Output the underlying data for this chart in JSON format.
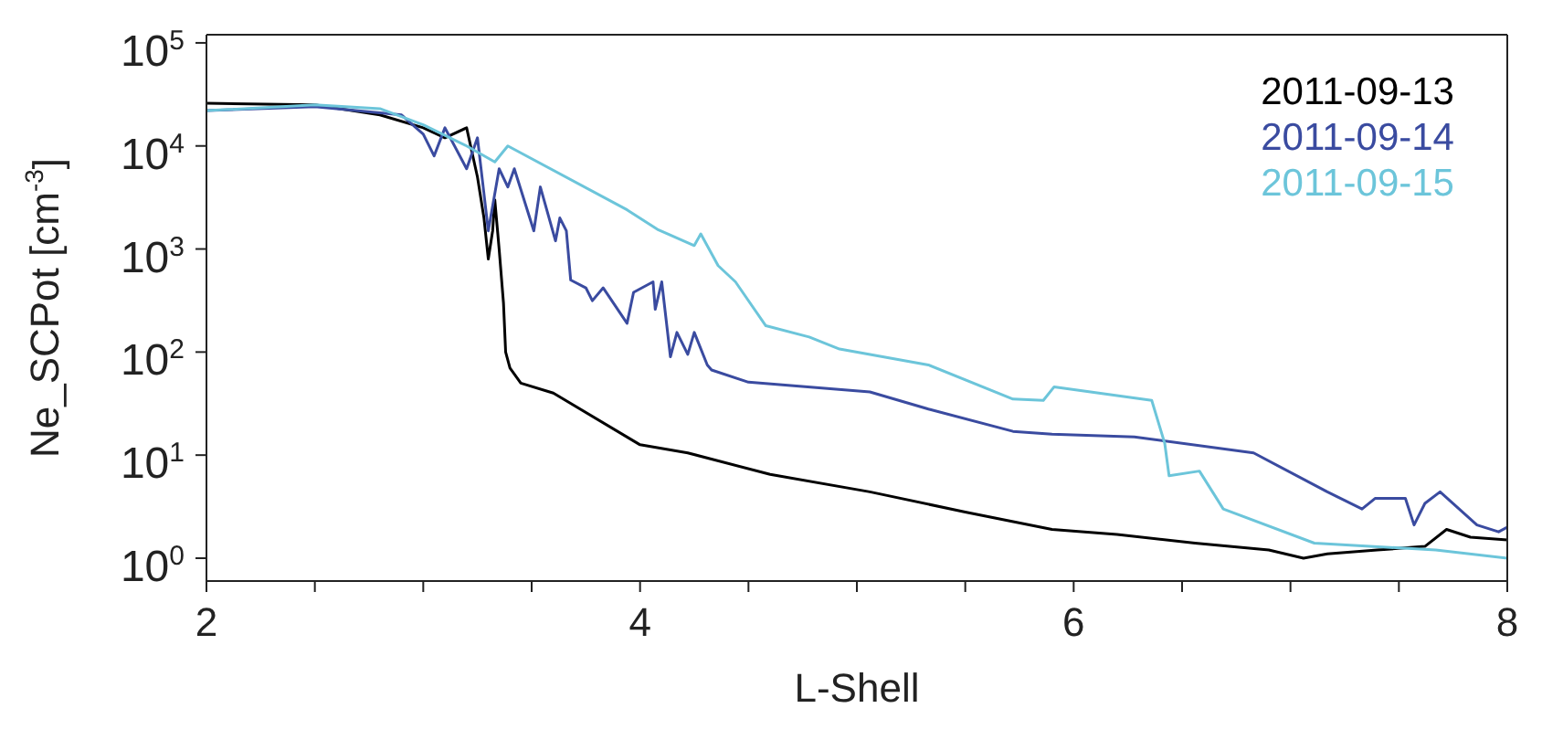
{
  "chart_data": {
    "type": "line",
    "xlabel": "L-Shell",
    "ylabel": "Ne_SCPot [cm$^{-3}$]",
    "log": "y",
    "legend": "top right",
    "marker": "none",
    "line_style": "solid",
    "xlim": [
      2,
      8
    ],
    "xticks": [
      2,
      {
        "value": 2.5,
        "label": null
      },
      {
        "value": 3,
        "label": null
      },
      {
        "value": 3.5,
        "label": null
      },
      4,
      {
        "value": 4.5,
        "label": null
      },
      {
        "value": 5,
        "label": null
      },
      {
        "value": 5.5,
        "label": null
      },
      6,
      {
        "value": 6.5,
        "label": null
      },
      {
        "value": 7,
        "label": null
      },
      {
        "value": 7.5,
        "label": null
      },
      8
    ],
    "ylim": [
      0.6,
      120000
    ],
    "yticks": [
      {
        "value": 1,
        "label": "10$^{0}$"
      },
      {
        "value": 10,
        "label": "10$^{1}$"
      },
      {
        "value": 100,
        "label": "10$^{2}$"
      },
      {
        "value": 1000,
        "label": "10$^{3}$"
      },
      {
        "value": 10000,
        "label": "10$^{4}$"
      },
      {
        "value": 100000,
        "label": "10$^{5}$"
      }
    ],
    "series": [
      {
        "name": "2011-09-13",
        "color": "#000000",
        "x": [
          2.0,
          2.5,
          2.8,
          3.0,
          3.1,
          3.2,
          3.25,
          3.28,
          3.3,
          3.32,
          3.33,
          3.35,
          3.37,
          3.38,
          3.4,
          3.45,
          3.6,
          4.0,
          4.22,
          4.6,
          5.06,
          5.5,
          5.9,
          6.2,
          6.56,
          6.9,
          7.06,
          7.17,
          7.4,
          7.62,
          7.72,
          7.83,
          8.0
        ],
        "values": [
          26000,
          25000,
          20000,
          15000,
          12000,
          15000,
          5000,
          2000,
          800,
          1500,
          3000,
          1000,
          300,
          100,
          70,
          50,
          40,
          12.6,
          10.5,
          6.5,
          4.4,
          2.8,
          1.9,
          1.7,
          1.4,
          1.2,
          1.0,
          1.1,
          1.2,
          1.3,
          1.9,
          1.6,
          1.5
        ]
      },
      {
        "name": "2011-09-14",
        "color": "#3a4ba0",
        "x": [
          2.0,
          2.5,
          2.9,
          3.0,
          3.05,
          3.1,
          3.2,
          3.25,
          3.3,
          3.35,
          3.39,
          3.42,
          3.51,
          3.54,
          3.61,
          3.63,
          3.66,
          3.68,
          3.75,
          3.78,
          3.83,
          3.94,
          3.97,
          4.06,
          4.07,
          4.1,
          4.14,
          4.17,
          4.22,
          4.25,
          4.31,
          4.33,
          4.5,
          5.06,
          5.33,
          5.72,
          5.9,
          6.28,
          6.83,
          7.17,
          7.33,
          7.39,
          7.53,
          7.57,
          7.62,
          7.69,
          7.86,
          7.96,
          8.0
        ],
        "values": [
          22000,
          24000,
          20000,
          13000,
          8000,
          15000,
          6000,
          12000,
          1500,
          6000,
          4000,
          6000,
          1500,
          4000,
          1200,
          2000,
          1500,
          500,
          420,
          315,
          420,
          190,
          380,
          480,
          260,
          480,
          90,
          155,
          95,
          155,
          75,
          67,
          51,
          41,
          28,
          17,
          16,
          15,
          10.5,
          4.4,
          3.0,
          3.8,
          3.8,
          2.1,
          3.4,
          4.4,
          2.1,
          1.8,
          2.0
        ]
      },
      {
        "name": "2011-09-15",
        "color": "#6cc5da",
        "x": [
          2.0,
          2.5,
          2.8,
          3.0,
          3.2,
          3.33,
          3.39,
          3.94,
          4.08,
          4.25,
          4.28,
          4.36,
          4.44,
          4.58,
          4.78,
          4.92,
          5.33,
          5.72,
          5.86,
          5.91,
          6.36,
          6.42,
          6.44,
          6.58,
          6.69,
          7.11,
          7.67,
          8.0
        ],
        "values": [
          22000,
          25000,
          23000,
          16000,
          10000,
          7000,
          10000,
          2400,
          1550,
          1080,
          1400,
          690,
          480,
          180,
          140,
          107,
          75,
          35,
          34,
          46,
          34,
          13,
          6.3,
          7,
          3.0,
          1.4,
          1.2,
          1.0
        ]
      }
    ]
  }
}
